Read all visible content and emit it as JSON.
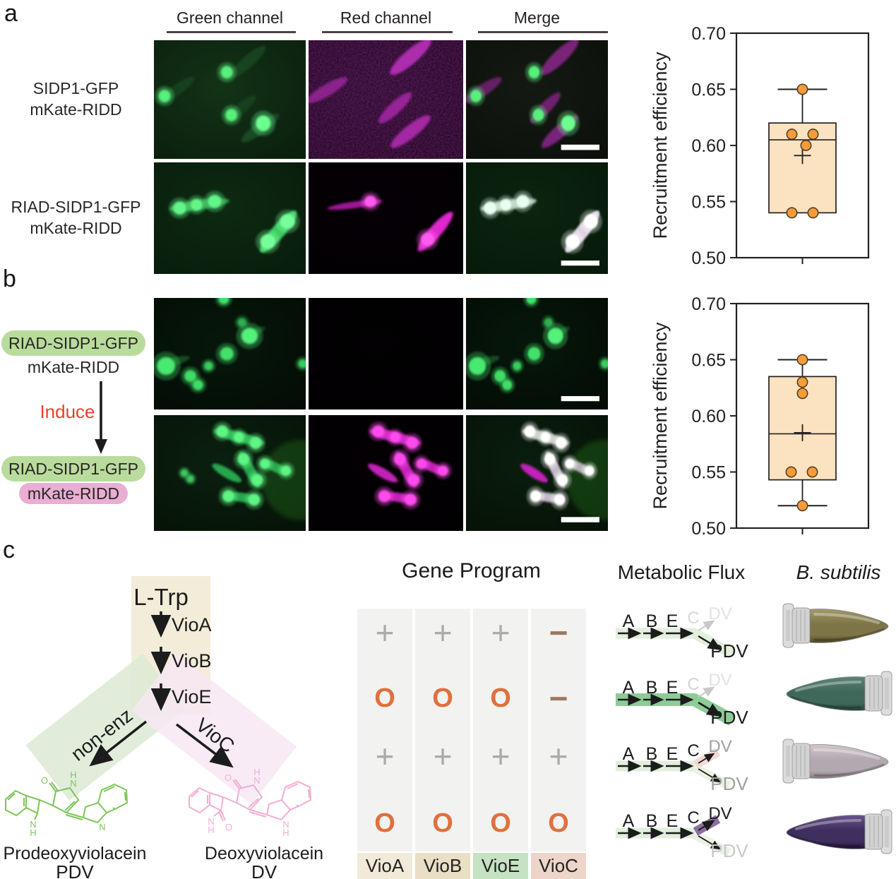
{
  "figure": {
    "panel_labels": {
      "a": "a",
      "b": "b",
      "c": "c"
    }
  },
  "microscopy": {
    "column_headers": [
      "Green channel",
      "Red channel",
      "Merge"
    ],
    "row_labels_a": [
      [
        "SIDP1-GFP",
        "mKate-RIDD"
      ],
      [
        "RIAD-SIDP1-GFP",
        "mKate-RIDD"
      ]
    ]
  },
  "panel_b": {
    "before": {
      "pill": "RIAD-SIDP1-GFP",
      "plain": "mKate-RIDD"
    },
    "induce_label": "Induce",
    "after": {
      "pill_green": "RIAD-SIDP1-GFP",
      "pill_pink": "mKate-RIDD"
    },
    "pill_green_color": "#b9dc9c",
    "pill_pink_color": "#e9aed3",
    "induce_color": "#e8402e"
  },
  "chart_data": [
    {
      "type": "box",
      "panel": "a",
      "title": "",
      "xlabel": "",
      "ylabel": "Recruitment efficiency",
      "ylim": [
        0.5,
        0.7
      ],
      "yticks": [
        "0.70",
        "0.65",
        "0.60",
        "0.55",
        "0.50"
      ],
      "box": {
        "q1": 0.54,
        "median": 0.605,
        "q3": 0.62,
        "whisker_low": 0.54,
        "whisker_high": 0.65,
        "mean": 0.591
      },
      "points": [
        0.65,
        0.61,
        0.61,
        0.6,
        0.54,
        0.54
      ],
      "jitter": [
        0,
        -15,
        15,
        5,
        -15,
        15
      ],
      "box_fill": "#fbe2c0",
      "point_fill": "#f59c38",
      "point_stroke": "#51412a",
      "line_color": "#231f20"
    },
    {
      "type": "box",
      "panel": "b",
      "title": "",
      "xlabel": "",
      "ylabel": "Recruitment efficiency",
      "ylim": [
        0.5,
        0.7
      ],
      "yticks": [
        "0.70",
        "0.65",
        "0.60",
        "0.55",
        "0.50"
      ],
      "box": {
        "q1": 0.543,
        "median": 0.584,
        "q3": 0.635,
        "whisker_low": 0.52,
        "whisker_high": 0.65,
        "mean": 0.585
      },
      "points": [
        0.65,
        0.63,
        0.62,
        0.55,
        0.55,
        0.52
      ],
      "jitter": [
        0,
        0,
        0,
        -16,
        14,
        0
      ],
      "box_fill": "#fbe2c0",
      "point_fill": "#f59c38",
      "point_stroke": "#51412a",
      "line_color": "#231f20"
    }
  ],
  "pathway": {
    "substrate": "L-Trp",
    "enzymes": [
      "VioA",
      "VioB",
      "VioE"
    ],
    "branch_left": "non-enz",
    "branch_right": "VioC",
    "product_left": {
      "name": "Prodeoxyviolacein",
      "abbr": "PDV",
      "color": "#7cc558"
    },
    "product_right": {
      "name": "Deoxyviolacein",
      "abbr": "DV",
      "color": "#f2aed2"
    },
    "atoms": {
      "o": "O",
      "n": "N",
      "h": "H"
    },
    "band_colors": {
      "substrate_band": "#f3ecd9",
      "left_band": "#dcead3",
      "right_band": "#f7e8f3"
    }
  },
  "program": {
    "title": "Gene Program",
    "grid": [
      [
        "+",
        "+",
        "+",
        "−"
      ],
      [
        "O",
        "O",
        "O",
        "−"
      ],
      [
        "+",
        "+",
        "+",
        "+"
      ],
      [
        "O",
        "O",
        "O",
        "O"
      ]
    ],
    "footer": [
      "VioA",
      "VioB",
      "VioE",
      "VioC"
    ],
    "footer_colors": [
      "#f2ead9",
      "#e9dfc4",
      "#c5e2c2",
      "#edd5c9"
    ],
    "symbol_colors": {
      "plus": "#ababab",
      "minus": "#9b7a60",
      "ring": "#e0703c"
    }
  },
  "flux": {
    "title": "Metabolic Flux",
    "rows": [
      {
        "steps": [
          "A",
          "B",
          "E"
        ],
        "c": "C",
        "dv": "DV",
        "pdv": "PDV",
        "active_path": "PDV",
        "band": "faint-green"
      },
      {
        "steps": [
          "A",
          "B",
          "E"
        ],
        "c": "C",
        "dv": "DV",
        "pdv": "PDV",
        "active_path": "PDV",
        "band": "strong-green"
      },
      {
        "steps": [
          "A",
          "B",
          "E"
        ],
        "c": "C",
        "dv": "DV",
        "pdv": "PDV",
        "active_path": "split",
        "band": "faint-green-pink"
      },
      {
        "steps": [
          "A",
          "B",
          "E"
        ],
        "c": "C",
        "dv": "DV",
        "pdv": "PDV",
        "active_path": "DV",
        "band": "faint-green-purple"
      }
    ],
    "band_colors": {
      "faint_green": "#e2efdd",
      "strong_green": "#8fcb97",
      "pink": "#f3d9d3",
      "purple": "#8a6f9e"
    }
  },
  "tubes": {
    "title": "B. subtilis",
    "samples": [
      {
        "color": "#7d7547",
        "light": "#a39a6a",
        "dark": "#4f4827",
        "cap_side": "left"
      },
      {
        "color": "#3f685a",
        "light": "#5d8476",
        "dark": "#27443a",
        "cap_side": "right"
      },
      {
        "color": "#b3a8b0",
        "light": "#d0c7cd",
        "dark": "#857a82",
        "cap_side": "left"
      },
      {
        "color": "#3e2f5e",
        "light": "#65548b",
        "dark": "#221238",
        "cap_side": "right"
      }
    ]
  }
}
